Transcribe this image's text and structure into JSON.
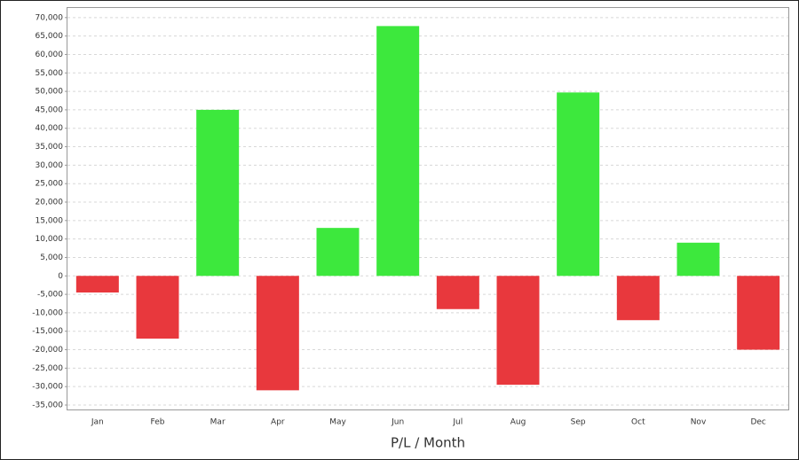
{
  "chart_data": {
    "type": "bar",
    "x_label": "P/L / Month",
    "categories": [
      "Jan",
      "Feb",
      "Mar",
      "Apr",
      "May",
      "Jun",
      "Jul",
      "Aug",
      "Sep",
      "Oct",
      "Nov",
      "Dec"
    ],
    "values": [
      -4500,
      -17000,
      45000,
      -31000,
      13000,
      67700,
      -9000,
      -29500,
      49700,
      -12000,
      9000,
      -20000
    ],
    "positive_color": "#3de83d",
    "negative_color": "#e8383d",
    "ylim": [
      -36200,
      72600
    ],
    "yticks": [
      {
        "value": -35000,
        "label": "-35,000"
      },
      {
        "value": -30000,
        "label": "-30,000"
      },
      {
        "value": -25000,
        "label": "-25,000"
      },
      {
        "value": -20000,
        "label": "-20,000"
      },
      {
        "value": -15000,
        "label": "-15,000"
      },
      {
        "value": -10000,
        "label": "-10,000"
      },
      {
        "value": -5000,
        "label": "-5,000"
      },
      0,
      {
        "value": 5000,
        "label": "5,000"
      },
      {
        "value": 10000,
        "label": "10,000"
      },
      {
        "value": 15000,
        "label": "15,000"
      },
      {
        "value": 20000,
        "label": "20,000"
      },
      {
        "value": 25000,
        "label": "25,000"
      },
      {
        "value": 30000,
        "label": "30,000"
      },
      {
        "value": 35000,
        "label": "35,000"
      },
      {
        "value": 40000,
        "label": "40,000"
      },
      {
        "value": 45000,
        "label": "45,000"
      },
      {
        "value": 50000,
        "label": "50,000"
      },
      {
        "value": 55000,
        "label": "55,000"
      },
      {
        "value": 60000,
        "label": "60,000"
      },
      {
        "value": 65000,
        "label": "65,000"
      },
      {
        "value": 70000,
        "label": "70,000"
      }
    ],
    "grid": true
  }
}
